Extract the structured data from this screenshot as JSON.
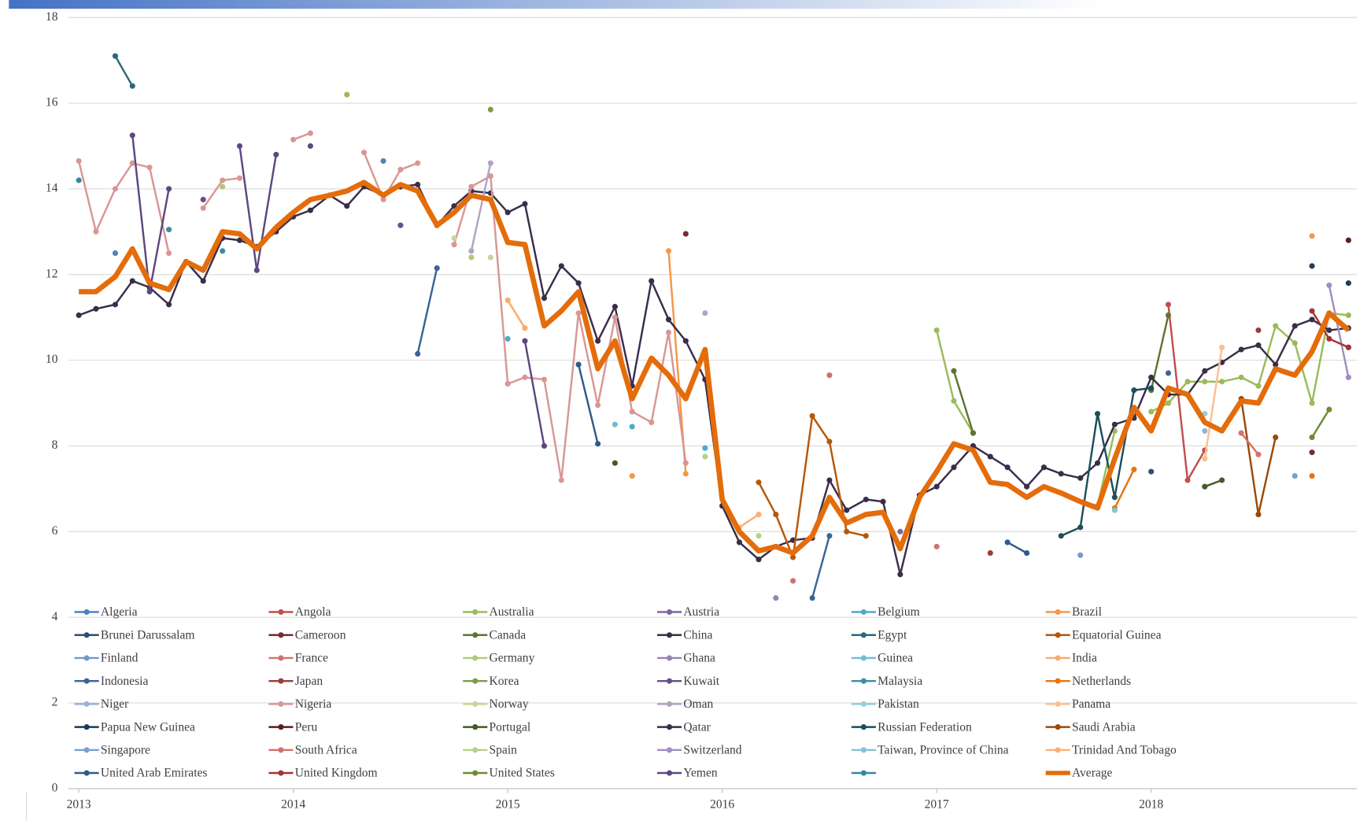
{
  "chart_data": {
    "type": "line",
    "xlim": [
      2013,
      2019
    ],
    "ylim": [
      0,
      18
    ],
    "xticks": [
      2013,
      2014,
      2015,
      2016,
      2017,
      2018
    ],
    "yticks": [
      0,
      2,
      4,
      6,
      8,
      10,
      12,
      14,
      16,
      18
    ],
    "grid": true,
    "legend": "bottom",
    "x": [
      2013,
      2013.08,
      2013.17,
      2013.25,
      2013.33,
      2013.42,
      2013.5,
      2013.58,
      2013.67,
      2013.75,
      2013.83,
      2013.92,
      2014,
      2014.08,
      2014.17,
      2014.25,
      2014.33,
      2014.42,
      2014.5,
      2014.58,
      2014.67,
      2014.75,
      2014.83,
      2014.92,
      2015,
      2015.08,
      2015.17,
      2015.25,
      2015.33,
      2015.42,
      2015.5,
      2015.58,
      2015.67,
      2015.75,
      2015.83,
      2015.92,
      2016,
      2016.08,
      2016.17,
      2016.25,
      2016.33,
      2016.42,
      2016.5,
      2016.58,
      2016.67,
      2016.75,
      2016.83,
      2016.92,
      2017,
      2017.08,
      2017.17,
      2017.25,
      2017.33,
      2017.42,
      2017.5,
      2017.58,
      2017.67,
      2017.75,
      2017.83,
      2017.92,
      2018,
      2018.08,
      2018.17,
      2018.25,
      2018.33,
      2018.42,
      2018.5,
      2018.58,
      2018.67,
      2018.75,
      2018.83,
      2018.92
    ],
    "series": [
      {
        "name": "Algeria",
        "color": "#4f81bd",
        "x": [
          2013.17,
          2014.42
        ],
        "values": [
          12.5,
          14.65
        ]
      },
      {
        "name": "Angola",
        "color": "#c0504d",
        "x": [
          2018.08,
          2018.17,
          2018.25
        ],
        "values": [
          11.3,
          7.2,
          7.9
        ]
      },
      {
        "name": "Australia",
        "color": "#9bbb59",
        "x": [
          2014.25,
          2017,
          2017.08,
          2017.17,
          2017.75,
          2017.83,
          2018,
          2018.08,
          2018.17,
          2018.25,
          2018.33,
          2018.42,
          2018.5,
          2018.58,
          2018.67,
          2018.75,
          2018.83,
          2018.92
        ],
        "values": [
          16.2,
          10.7,
          9.05,
          8.3,
          6.6,
          8.35,
          8.8,
          9.0,
          9.5,
          9.5,
          9.5,
          9.6,
          9.4,
          10.8,
          10.4,
          9.0,
          11.1,
          11.05
        ]
      },
      {
        "name": "Austria",
        "color": "#8064a2",
        "x": [
          2016.83
        ],
        "values": [
          6.0
        ]
      },
      {
        "name": "Belgium",
        "color": "#4bacc6",
        "x": [
          2015,
          2015.58,
          2015.92
        ],
        "values": [
          10.5,
          8.45,
          7.95
        ]
      },
      {
        "name": "Brazil",
        "color": "#f79646",
        "x": [
          2015.58,
          2015.75,
          2015.83,
          2018.75
        ],
        "values": [
          7.3,
          12.55,
          7.35,
          12.9
        ]
      },
      {
        "name": "Brunei Darussalam",
        "color": "#2c4d75",
        "x": [
          2018
        ],
        "values": [
          7.4
        ]
      },
      {
        "name": "Cameroon",
        "color": "#772c2a",
        "x": [
          2015.83,
          2018.75
        ],
        "values": [
          12.95,
          7.85
        ]
      },
      {
        "name": "Canada",
        "color": "#5f7530",
        "x": [
          2017.08,
          2017.17,
          2018,
          2018.08
        ],
        "values": [
          9.75,
          8.3,
          9.3,
          11.05
        ]
      },
      {
        "name": "China",
        "color": "#3a2d4a",
        "values": [
          11.05,
          11.2,
          11.3,
          11.85,
          11.7,
          11.3,
          12.3,
          11.85,
          12.85,
          12.8,
          12.65,
          13.0,
          13.35,
          13.5,
          13.85,
          13.6,
          14.05,
          13.85,
          14.05,
          14.1,
          13.15,
          13.6,
          13.95,
          13.9,
          13.45,
          13.65,
          11.45,
          12.2,
          11.8,
          10.45,
          11.25,
          9.4,
          11.85,
          10.95,
          10.45,
          9.55,
          6.6,
          5.75,
          5.35,
          5.65,
          5.8,
          5.85,
          7.2,
          6.5,
          6.75,
          6.7,
          5.0,
          6.85,
          7.05,
          7.5,
          8.0,
          7.75,
          7.5,
          7.05,
          7.5,
          7.35,
          7.25,
          7.6,
          8.5,
          8.65,
          9.6,
          9.2,
          9.2,
          9.75,
          9.95,
          10.25,
          10.35,
          9.9,
          10.8,
          10.95,
          10.7,
          10.75
        ]
      },
      {
        "name": "Egypt",
        "color": "#276a7c",
        "x": [
          2013.17,
          2013.25
        ],
        "values": [
          17.1,
          16.4
        ]
      },
      {
        "name": "Equatorial Guinea",
        "color": "#b65708",
        "x": [
          2016.17,
          2016.25,
          2016.33,
          2016.42,
          2016.5,
          2016.58,
          2016.67
        ],
        "values": [
          7.15,
          6.4,
          5.4,
          8.7,
          8.1,
          6.0,
          5.9
        ]
      },
      {
        "name": "Finland",
        "color": "#729aca",
        "x": [
          2017.67
        ],
        "values": [
          5.45
        ]
      },
      {
        "name": "France",
        "color": "#cd7371",
        "x": [
          2016.33,
          2016.5,
          2017
        ],
        "values": [
          4.85,
          9.65,
          5.65
        ]
      },
      {
        "name": "Germany",
        "color": "#afc97a",
        "x": [
          2013.67,
          2014.83
        ],
        "values": [
          14.05,
          12.4
        ]
      },
      {
        "name": "Ghana",
        "color": "#9983b5",
        "x": [
          2016.25
        ],
        "values": [
          4.45
        ]
      },
      {
        "name": "Guinea",
        "color": "#6fbdd1",
        "x": [
          2015.5
        ],
        "values": [
          8.5
        ]
      },
      {
        "name": "India",
        "color": "#f9ab6b",
        "x": [
          2015,
          2015.08
        ],
        "values": [
          11.4,
          10.75
        ]
      },
      {
        "name": "Indonesia",
        "color": "#3c6397",
        "x": [
          2014.58,
          2014.67,
          2016.42,
          2016.5,
          2018.08
        ],
        "values": [
          10.15,
          12.15,
          4.45,
          5.9,
          9.7
        ]
      },
      {
        "name": "Japan",
        "color": "#9a3d3b",
        "x": [
          2017.25,
          2018.5
        ],
        "values": [
          5.5,
          10.7
        ]
      },
      {
        "name": "Korea",
        "color": "#7d9b46",
        "x": [
          2014.92
        ],
        "values": [
          15.85
        ]
      },
      {
        "name": "Kuwait",
        "color": "#66508a",
        "x": [
          2013.58,
          2014.5
        ],
        "values": [
          13.75,
          13.15
        ]
      },
      {
        "name": "Malaysia",
        "color": "#3c8da3",
        "x": [
          2013.42,
          2013.67
        ],
        "values": [
          13.05,
          12.55
        ]
      },
      {
        "name": "Netherlands",
        "color": "#e8740f",
        "x": [
          2017.83,
          2017.92,
          2018.75
        ],
        "values": [
          6.55,
          7.45,
          7.3
        ]
      },
      {
        "name": "Niger",
        "color": "#95b3d7",
        "x": [
          2018.25
        ],
        "values": [
          8.35
        ]
      },
      {
        "name": "Nigeria",
        "color": "#d99694",
        "x": [
          2013,
          2013.08,
          2013.17,
          2013.25,
          2013.33,
          2013.42,
          2013.58,
          2013.67,
          2013.75,
          2014,
          2014.08,
          2014.33,
          2014.42,
          2014.5,
          2014.58,
          2014.75,
          2014.83,
          2014.92,
          2015,
          2015.08,
          2015.17,
          2015.25,
          2015.33,
          2015.42,
          2015.5,
          2015.58,
          2015.67,
          2015.75,
          2015.83
        ],
        "values": [
          14.65,
          13.0,
          14.0,
          14.6,
          14.5,
          12.5,
          13.55,
          14.2,
          14.25,
          15.15,
          15.3,
          14.85,
          13.75,
          14.45,
          14.6,
          12.7,
          14.05,
          14.3,
          9.45,
          9.6,
          9.55,
          7.2,
          11.1,
          8.95,
          11.0,
          8.8,
          8.55,
          10.65,
          7.6
        ]
      },
      {
        "name": "Norway",
        "color": "#c3d69b",
        "x": [
          2014.75,
          2014.92
        ],
        "values": [
          12.85,
          12.4
        ]
      },
      {
        "name": "Oman",
        "color": "#b3a2c7",
        "x": [
          2014.83,
          2014.92,
          2015.92
        ],
        "values": [
          12.55,
          14.6,
          11.1
        ]
      },
      {
        "name": "Pakistan",
        "color": "#93cddd",
        "x": [
          2018.25
        ],
        "values": [
          8.75
        ]
      },
      {
        "name": "Panama",
        "color": "#fac090",
        "x": [
          2018.25,
          2018.33
        ],
        "values": [
          7.7,
          10.3
        ]
      },
      {
        "name": "Papua New Guinea",
        "color": "#1f3a5a",
        "x": [
          2018.75,
          2018.92
        ],
        "values": [
          12.2,
          11.8
        ]
      },
      {
        "name": "Peru",
        "color": "#5a1f1e",
        "x": [
          2018.92
        ],
        "values": [
          12.8
        ]
      },
      {
        "name": "Portugal",
        "color": "#475929",
        "x": [
          2015.5,
          2018.25,
          2018.33
        ],
        "values": [
          7.6,
          7.05,
          7.2
        ]
      },
      {
        "name": "Qatar",
        "color": "#3a2d4a",
        "x": [
          2018.92
        ],
        "values": [
          10.3
        ]
      },
      {
        "name": "Russian Federation",
        "color": "#1d4f5c",
        "x": [
          2017.58,
          2017.67,
          2017.75,
          2017.83,
          2017.92,
          2018
        ],
        "values": [
          5.9,
          6.1,
          8.75,
          6.8,
          9.3,
          9.35
        ]
      },
      {
        "name": "Saudi Arabia",
        "color": "#9a4a06",
        "x": [
          2018.42,
          2018.5,
          2018.58
        ],
        "values": [
          9.1,
          6.4,
          8.2
        ]
      },
      {
        "name": "Singapore",
        "color": "#7ba0cd",
        "x": [
          2018.67
        ],
        "values": [
          7.3
        ]
      },
      {
        "name": "South Africa",
        "color": "#d4716e",
        "x": [
          2018.42,
          2018.5
        ],
        "values": [
          8.3,
          7.8
        ]
      },
      {
        "name": "Spain",
        "color": "#b5d18a",
        "x": [
          2015.92,
          2016.17
        ],
        "values": [
          7.75,
          5.9
        ]
      },
      {
        "name": "Switzerland",
        "color": "#a28ec1",
        "x": [
          2018.83,
          2018.92
        ],
        "values": [
          11.75,
          9.6
        ]
      },
      {
        "name": "Taiwan, Province of China",
        "color": "#7fc4d7",
        "x": [
          2017.83
        ],
        "values": [
          6.5
        ]
      },
      {
        "name": "Trinidad And Tobago",
        "color": "#fbb07a",
        "x": [
          2016.08,
          2016.17
        ],
        "values": [
          6.1,
          6.4
        ]
      },
      {
        "name": "United Arab Emirates",
        "color": "#2e5a8c",
        "x": [
          2015.33,
          2015.42,
          2017.33,
          2017.42
        ],
        "values": [
          9.9,
          8.05,
          5.75,
          5.5
        ]
      },
      {
        "name": "United Kingdom",
        "color": "#a33532",
        "x": [
          2018.75,
          2018.83,
          2018.92
        ],
        "values": [
          11.15,
          10.5,
          10.3
        ]
      },
      {
        "name": "United States",
        "color": "#6e8b33",
        "x": [
          2018.75,
          2018.83
        ],
        "values": [
          8.2,
          8.85
        ]
      },
      {
        "name": "Yemen",
        "color": "#5e4780",
        "x": [
          2013.25,
          2013.33,
          2013.42,
          2013.75,
          2013.83,
          2013.92,
          2014.08,
          2015.08,
          2015.17
        ],
        "values": [
          15.25,
          11.6,
          14.0,
          15.0,
          12.1,
          14.8,
          15.0,
          10.45,
          8.0
        ]
      },
      {
        "color": "#2f8aa0",
        "x": [
          2013
        ],
        "values": [
          14.2
        ]
      },
      {
        "name": "Average",
        "color": "#e46c0a",
        "values": [
          11.6,
          11.6,
          11.95,
          12.6,
          11.8,
          11.65,
          12.3,
          12.1,
          13.0,
          12.95,
          12.6,
          13.1,
          13.45,
          13.75,
          13.85,
          13.95,
          14.15,
          13.85,
          14.1,
          13.95,
          13.15,
          13.45,
          13.85,
          13.75,
          12.75,
          12.7,
          10.8,
          11.15,
          11.6,
          9.8,
          10.45,
          9.1,
          10.05,
          9.65,
          9.1,
          10.25,
          6.75,
          6.0,
          5.55,
          5.65,
          5.5,
          5.9,
          6.8,
          6.2,
          6.4,
          6.45,
          5.6,
          6.8,
          7.4,
          8.05,
          7.9,
          7.15,
          7.1,
          6.8,
          7.05,
          6.9,
          6.7,
          6.55,
          7.7,
          8.9,
          8.35,
          9.35,
          9.2,
          8.55,
          8.35,
          9.05,
          9.0,
          9.8,
          9.65,
          10.2,
          11.1,
          10.7
        ]
      }
    ]
  }
}
